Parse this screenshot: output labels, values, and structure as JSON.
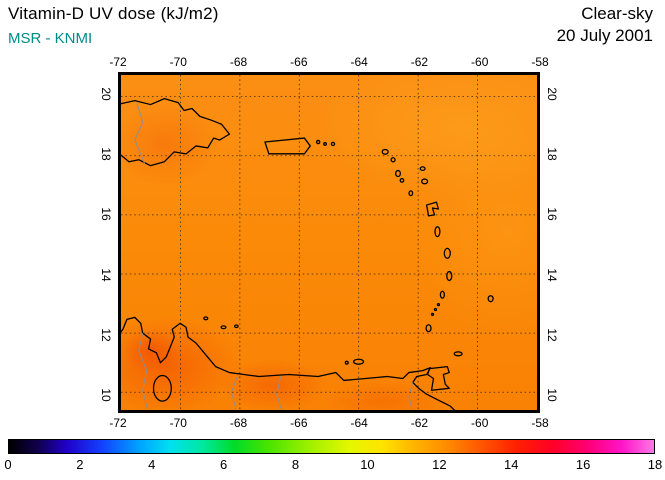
{
  "header": {
    "title": "Vitamin-D UV dose (kJ/m2)",
    "source": "MSR - KNMI",
    "condition": "Clear-sky",
    "date": "20 July 2001"
  },
  "colors": {
    "title_text": "#000000",
    "source_text": "#008B8B",
    "map_base_orange": "#FB8A08",
    "hot_patch_red": "#F04800",
    "coastline": "#000000",
    "country_border": "#8F8F8F"
  },
  "chart_data": {
    "type": "heatmap",
    "title": "Vitamin-D UV dose (kJ/m2)",
    "source": "MSR - KNMI",
    "sky_condition": "Clear-sky",
    "date": "20 July 2001",
    "region": "Caribbean Sea, Lesser Antilles, Hispaniola, Puerto Rico, northern Venezuela/Colombia",
    "grid": "dashed black graticule every 2 degrees",
    "x": {
      "name": "longitude",
      "ticks": [
        -72,
        -70,
        -68,
        -66,
        -64,
        -62,
        -60,
        -58
      ],
      "domain": [
        -72,
        -58
      ]
    },
    "y": {
      "name": "latitude",
      "ticks": [
        20,
        18,
        16,
        14,
        12,
        10
      ],
      "domain": [
        9.4,
        20.73
      ]
    },
    "value_range_visible": [
      10.5,
      13.5
    ],
    "field_notes": "Nearly uniform orange field ~11-12.5 kJ/m2 over sea; slightly redder maxima ~13 over northern Colombia/Venezuela and Hispaniola; slightly lighter orange toward the northeast corner",
    "colorbar": {
      "units": "kJ/m2",
      "min": 0,
      "max": 18,
      "ticks": [
        0,
        2,
        4,
        6,
        8,
        10,
        12,
        14,
        16,
        18
      ],
      "stops": [
        {
          "value": 0.0,
          "color": "#000000"
        },
        {
          "value": 0.8,
          "color": "#10004a"
        },
        {
          "value": 1.6,
          "color": "#2000c8"
        },
        {
          "value": 2.6,
          "color": "#1440ff"
        },
        {
          "value": 3.6,
          "color": "#00a0ff"
        },
        {
          "value": 4.5,
          "color": "#00e0f0"
        },
        {
          "value": 5.4,
          "color": "#00e8a0"
        },
        {
          "value": 6.3,
          "color": "#00dc28"
        },
        {
          "value": 7.2,
          "color": "#46e400"
        },
        {
          "value": 8.4,
          "color": "#a0f000"
        },
        {
          "value": 9.5,
          "color": "#e4f800"
        },
        {
          "value": 10.4,
          "color": "#ffe400"
        },
        {
          "value": 11.3,
          "color": "#ffb400"
        },
        {
          "value": 12.2,
          "color": "#ff8c00"
        },
        {
          "value": 13.1,
          "color": "#ff5a00"
        },
        {
          "value": 14.2,
          "color": "#ff1e00"
        },
        {
          "value": 15.2,
          "color": "#ff0028"
        },
        {
          "value": 16.2,
          "color": "#ff0078"
        },
        {
          "value": 17.1,
          "color": "#ff14c8"
        },
        {
          "value": 18.0,
          "color": "#ff78e6"
        }
      ]
    }
  }
}
